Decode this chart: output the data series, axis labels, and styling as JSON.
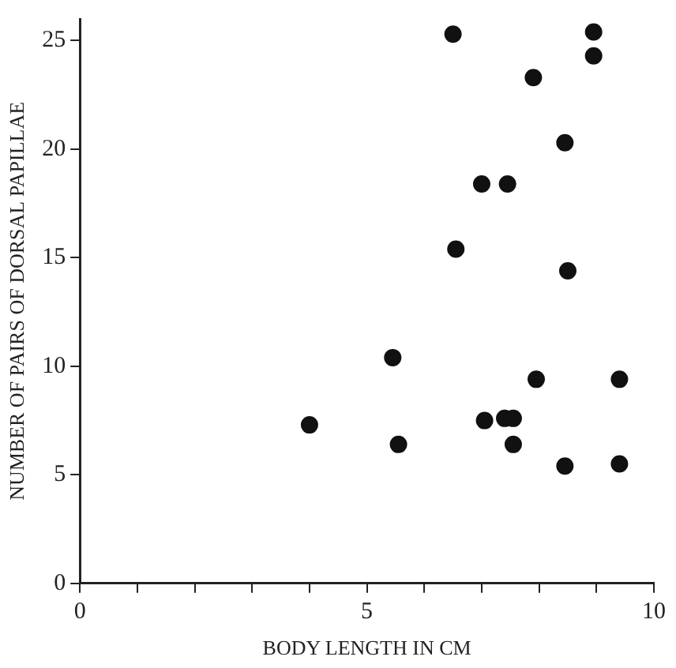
{
  "chart_data": {
    "type": "scatter",
    "xlabel": "BODY LENGTH IN CM",
    "ylabel": "NUMBER OF PAIRS OF DORSAL PAPILLAE",
    "xlim": [
      0,
      10
    ],
    "ylim": [
      0,
      26
    ],
    "xticks": [
      0,
      {
        "value": 1,
        "label": null
      },
      {
        "value": 2,
        "label": null
      },
      {
        "value": 3,
        "label": null
      },
      {
        "value": 4,
        "label": null
      },
      5,
      {
        "value": 6,
        "label": null
      },
      {
        "value": 7,
        "label": null
      },
      {
        "value": 8,
        "label": null
      },
      {
        "value": 9,
        "label": null
      },
      10
    ],
    "yticks": [
      0,
      5,
      10,
      15,
      20,
      25
    ],
    "grid": false,
    "legend": false,
    "marker": "circle",
    "series": [
      {
        "color": "#111111",
        "x": [
          6.5,
          8.95,
          8.95,
          7.9,
          8.45,
          7.0,
          7.45,
          6.55,
          8.5,
          5.45,
          4.0,
          5.55,
          7.05,
          7.4,
          7.55,
          7.55,
          7.95,
          8.45,
          9.4,
          9.4
        ],
        "values": [
          25.3,
          25.4,
          24.3,
          23.3,
          20.3,
          18.4,
          18.4,
          15.4,
          14.4,
          10.4,
          7.3,
          6.4,
          7.5,
          7.6,
          7.6,
          6.4,
          9.4,
          5.4,
          9.4,
          5.5
        ]
      }
    ]
  }
}
